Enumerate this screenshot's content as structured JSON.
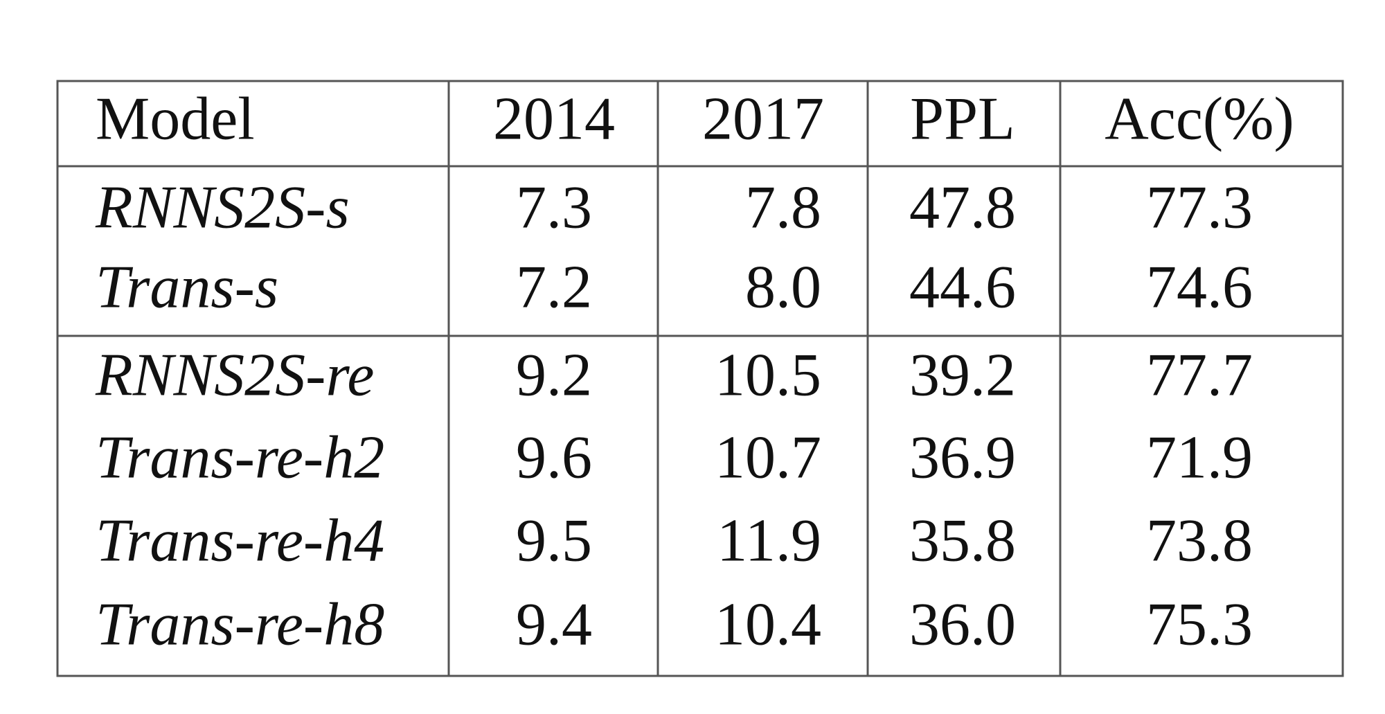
{
  "table": {
    "header": [
      "Model",
      "2014",
      "2017",
      "PPL",
      "Acc(%)"
    ],
    "rows": [
      [
        "RNNS2S-s",
        "7.3",
        "7.8",
        "47.8",
        "77.3"
      ],
      [
        "Trans-s",
        "7.2",
        "8.0",
        "44.6",
        "74.6"
      ],
      [
        "RNNS2S-re",
        "9.2",
        "10.5",
        "39.2",
        "77.7"
      ],
      [
        "Trans-re-h2",
        "9.6",
        "10.7",
        "36.9",
        "71.9"
      ],
      [
        "Trans-re-h4",
        "9.5",
        "11.9",
        "35.8",
        "73.8"
      ],
      [
        "Trans-re-h8",
        "9.4",
        "10.4",
        "36.0",
        "75.3"
      ]
    ]
  }
}
